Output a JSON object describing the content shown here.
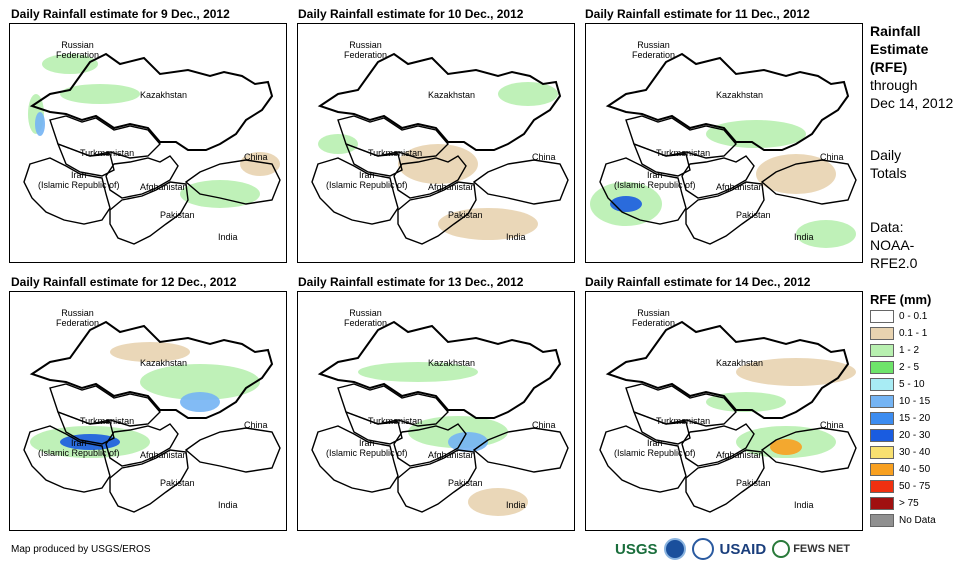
{
  "header": {
    "panel_titles": [
      "Daily Rainfall estimate for 9 Dec., 2012",
      "Daily Rainfall estimate for 10 Dec., 2012",
      "Daily Rainfall estimate for 11 Dec., 2012",
      "Daily Rainfall estimate for 12 Dec., 2012",
      "Daily Rainfall estimate for 13 Dec., 2012",
      "Daily Rainfall estimate for 14 Dec., 2012"
    ]
  },
  "map_labels": {
    "russia": "Russian\nFederation",
    "kazakhstan": "Kazakhstan",
    "turkmenistan": "Turkmenistan",
    "iran": "Iran\n(Islamic Republic of)",
    "afghanistan": "Afghanistan",
    "pakistan": "Pakistan",
    "china": "China",
    "india": "India"
  },
  "sidebar": {
    "title_line1": "Rainfall",
    "title_line2": "Estimate",
    "title_line3": "(RFE)",
    "through": "through",
    "date": "Dec 14, 2012",
    "totals_line1": "Daily",
    "totals_line2": "Totals",
    "data_line1": "Data:",
    "data_line2": "NOAA-",
    "data_line3": "RFE2.0"
  },
  "legend": {
    "title": "RFE (mm)",
    "items": [
      {
        "label": "0 - 0.1",
        "color": "#ffffff"
      },
      {
        "label": "0.1 - 1",
        "color": "#e8d3b0"
      },
      {
        "label": "1 - 2",
        "color": "#b8f0b0"
      },
      {
        "label": "2 - 5",
        "color": "#6ee46a"
      },
      {
        "label": "5 - 10",
        "color": "#a8ecf4"
      },
      {
        "label": "10 - 15",
        "color": "#74b4f4"
      },
      {
        "label": "15 - 20",
        "color": "#3c8cf0"
      },
      {
        "label": "20 - 30",
        "color": "#1a5ce0"
      },
      {
        "label": "30 - 40",
        "color": "#f8e070"
      },
      {
        "label": "40 - 50",
        "color": "#f8a020"
      },
      {
        "label": "50 - 75",
        "color": "#f03010"
      },
      {
        "label": "> 75",
        "color": "#a01010"
      },
      {
        "label": "No Data",
        "color": "#909090"
      }
    ]
  },
  "footer": {
    "credit": "Map produced by USGS/EROS",
    "logos": [
      "USGS",
      "NOAA",
      "DOI",
      "USAID",
      "FEWS NET"
    ]
  }
}
